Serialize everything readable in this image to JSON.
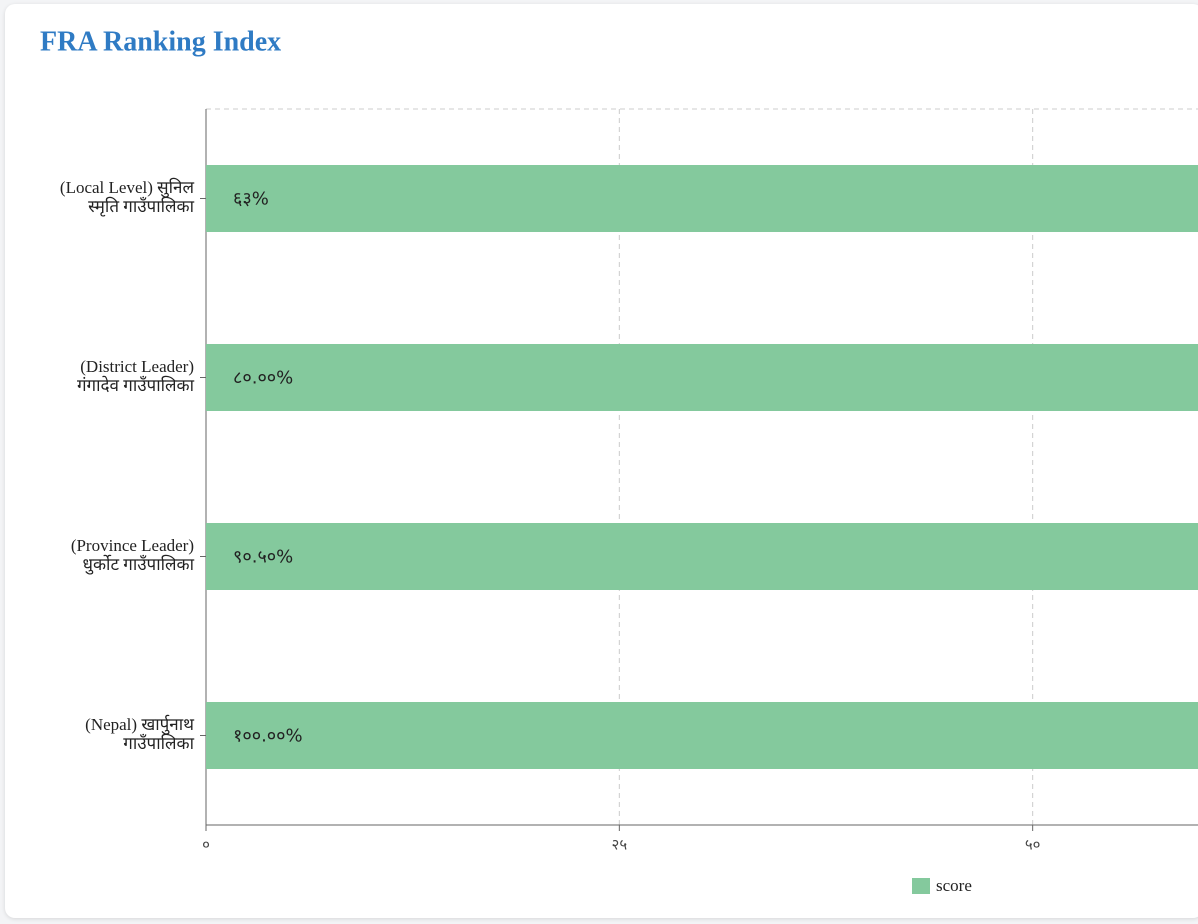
{
  "chart_data": {
    "type": "bar",
    "orientation": "horizontal",
    "title": "FRA Ranking Index",
    "categories": [
      "(Local Level) सुनिल स्मृति गाउँपालिका",
      "(District Leader) गंगादेव गाउँपालिका",
      "(Province Leader) धुर्कोट गाउँपालिका",
      "(Nepal) खार्पुनाथ गाउँपालिका"
    ],
    "series": [
      {
        "name": "score",
        "color": "#84c99d",
        "values": [
          63,
          80,
          90.5,
          100
        ],
        "value_labels": [
          "६३%",
          "८०.००%",
          "९०.५०%",
          "१००.००%"
        ]
      }
    ],
    "xlim": [
      0,
      60
    ],
    "xticks": [
      {
        "value": 0,
        "label": "०"
      },
      {
        "value": 25,
        "label": "२५"
      },
      {
        "value": 50,
        "label": "५०"
      }
    ],
    "grid": true
  }
}
